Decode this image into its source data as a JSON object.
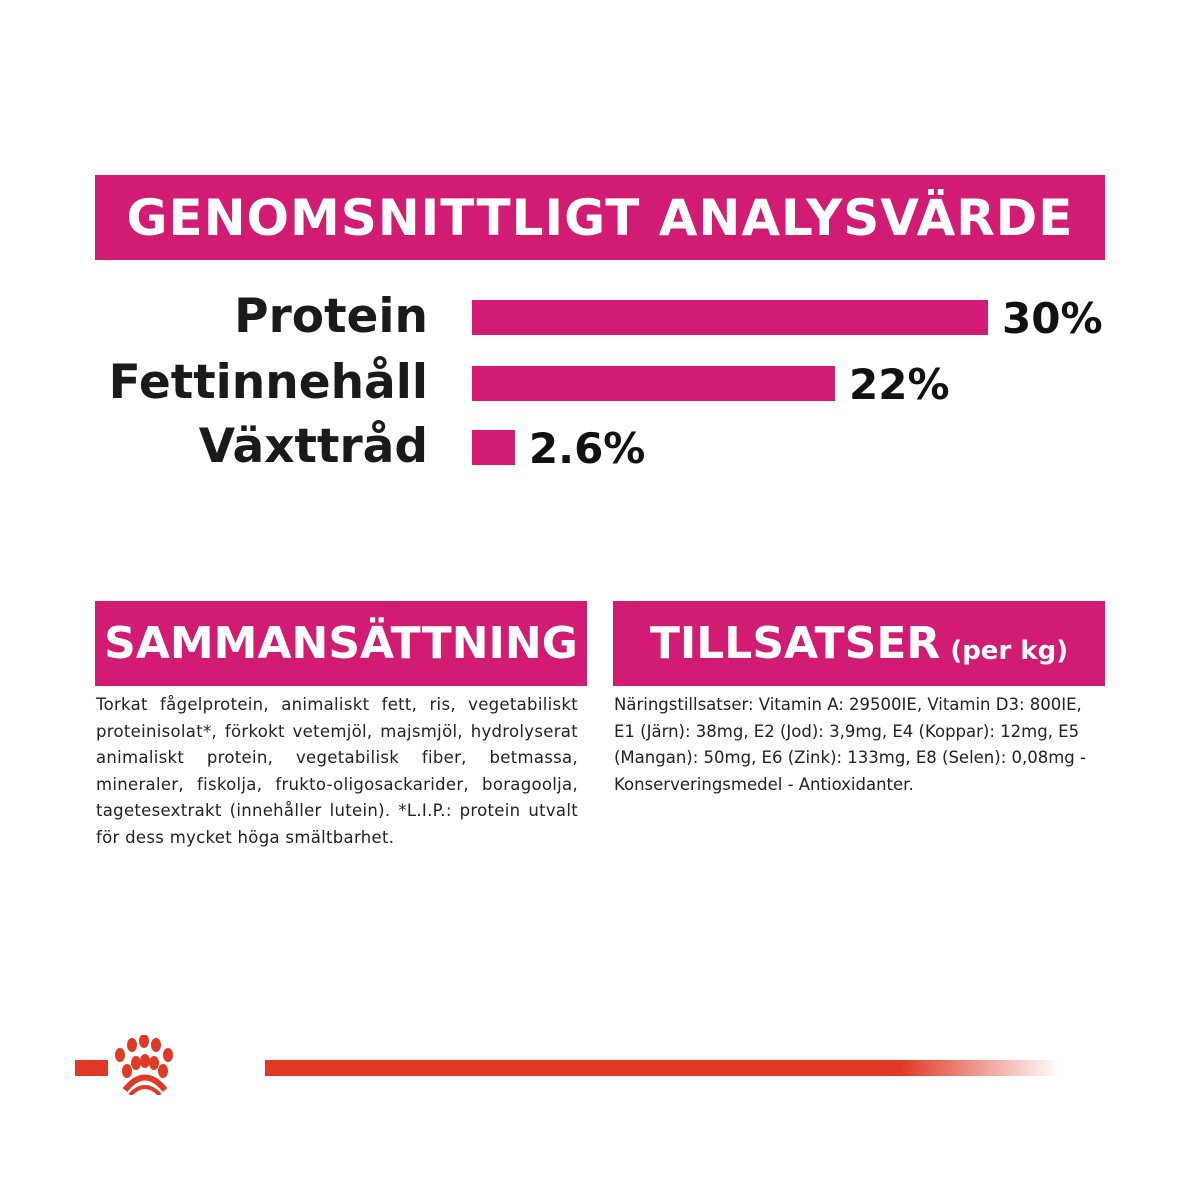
{
  "chart_data": {
    "type": "bar",
    "title": "GENOMSNITTLIGT ANALYSVÄRDE",
    "categories": [
      "Protein",
      "Fettinnehåll",
      "Växttråd"
    ],
    "values": [
      30,
      22,
      2.6
    ],
    "value_labels": [
      "30%",
      "22%",
      "2.6%"
    ],
    "orientation": "horizontal",
    "color": "#D21B73"
  },
  "composition": {
    "heading": "SAMMANSÄTTNING",
    "text": "Torkat fågelprotein, animaliskt fett, ris, vegetabiliskt proteinisolat*, förkokt vetemjöl, majsmjöl, hydrolyserat animaliskt protein, vegetabilisk fiber, betmassa, mineraler, fiskolja, frukto-oligosackarider, boragoolja, tagetesextrakt (innehåller lutein). *L.I.P.: protein utvalt för dess mycket höga smältbarhet."
  },
  "additives": {
    "heading": "TILLSATSER",
    "unit": "(per kg)",
    "text": "Näringstillsatser: Vitamin A: 29500IE, Vitamin D3: 800IE, E1 (Järn): 38mg, E2 (Jod): 3,9mg, E4 (Koppar): 12mg, E5 (Mangan): 50mg, E6 (Zink): 133mg, E8 (Selen): 0,08mg - Konserveringsmedel - Antioxidanter."
  },
  "brand": {
    "logo": "crown-logo",
    "color": "#E03A26"
  }
}
